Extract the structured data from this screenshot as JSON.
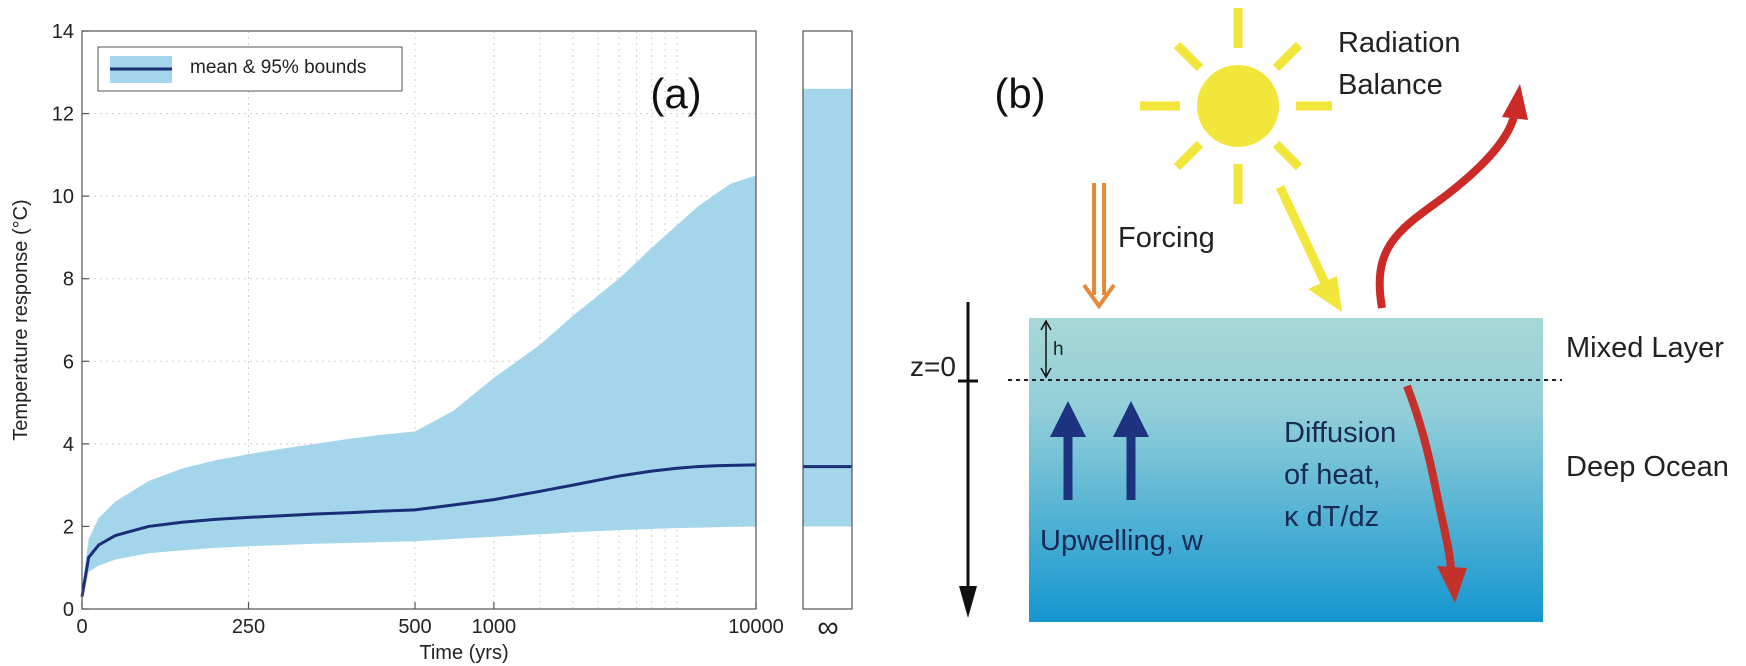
{
  "panel_a": {
    "label": "(a)",
    "legend_label": "mean & 95% bounds",
    "xlabel": "Time (yrs)",
    "ylabel": "Temperature response (°C)",
    "infinity_label": "∞"
  },
  "panel_b": {
    "label": "(b)",
    "radiation_line1": "Radiation",
    "radiation_line2": "Balance",
    "forcing": "Forcing",
    "mixed_layer": "Mixed Layer",
    "deep_ocean": "Deep Ocean",
    "z0": "z=0",
    "h": "h",
    "upwelling": "Upwelling, w",
    "diffusion_line1": "Diffusion",
    "diffusion_line2": "of heat,",
    "diffusion_line3": "κ dT/dz",
    "colors": {
      "sun": "#f2e63a",
      "forcing_arrow": "#e8893a",
      "outgoing_arrow": "#cc2a26",
      "upwelling_arrow": "#1e3380",
      "mixed_layer": "#a6d8d6",
      "deep_ocean_bottom": "#1496cf"
    }
  },
  "chart_data": {
    "type": "area",
    "ylim": [
      0,
      14
    ],
    "x_scale": "piecewise: linear 0-500, log 500-10000",
    "xlim": [
      0,
      10000
    ],
    "x_ticks": [
      0,
      250,
      500,
      1000,
      10000
    ],
    "y_ticks": [
      0,
      2,
      4,
      6,
      8,
      10,
      12,
      14
    ],
    "grid": true,
    "legend_position": "top-left",
    "colors": {
      "band": "#a3d6eb",
      "mean": "#1c2d78"
    },
    "x": [
      0,
      10,
      25,
      50,
      100,
      150,
      200,
      250,
      300,
      350,
      400,
      450,
      500,
      700,
      1000,
      1500,
      2000,
      3000,
      4000,
      5000,
      6000,
      7000,
      8000,
      10000
    ],
    "series": [
      {
        "name": "mean",
        "values": [
          0.3,
          1.25,
          1.55,
          1.78,
          2.0,
          2.1,
          2.17,
          2.22,
          2.26,
          2.3,
          2.33,
          2.37,
          2.4,
          2.52,
          2.65,
          2.85,
          3.0,
          3.22,
          3.34,
          3.41,
          3.45,
          3.47,
          3.48,
          3.49
        ]
      },
      {
        "name": "lower",
        "values": [
          0.2,
          0.9,
          1.05,
          1.2,
          1.35,
          1.42,
          1.48,
          1.52,
          1.55,
          1.58,
          1.6,
          1.62,
          1.64,
          1.7,
          1.75,
          1.81,
          1.86,
          1.91,
          1.94,
          1.96,
          1.97,
          1.98,
          1.99,
          2.0
        ]
      },
      {
        "name": "upper",
        "values": [
          0.5,
          1.7,
          2.2,
          2.6,
          3.1,
          3.4,
          3.6,
          3.75,
          3.88,
          4.0,
          4.12,
          4.22,
          4.3,
          4.8,
          5.6,
          6.4,
          7.1,
          8.0,
          8.75,
          9.3,
          9.75,
          10.05,
          10.3,
          10.5
        ]
      }
    ],
    "equilibrium": {
      "x_label": "∞",
      "mean": 3.45,
      "lower": 2.0,
      "upper": 12.6
    }
  }
}
